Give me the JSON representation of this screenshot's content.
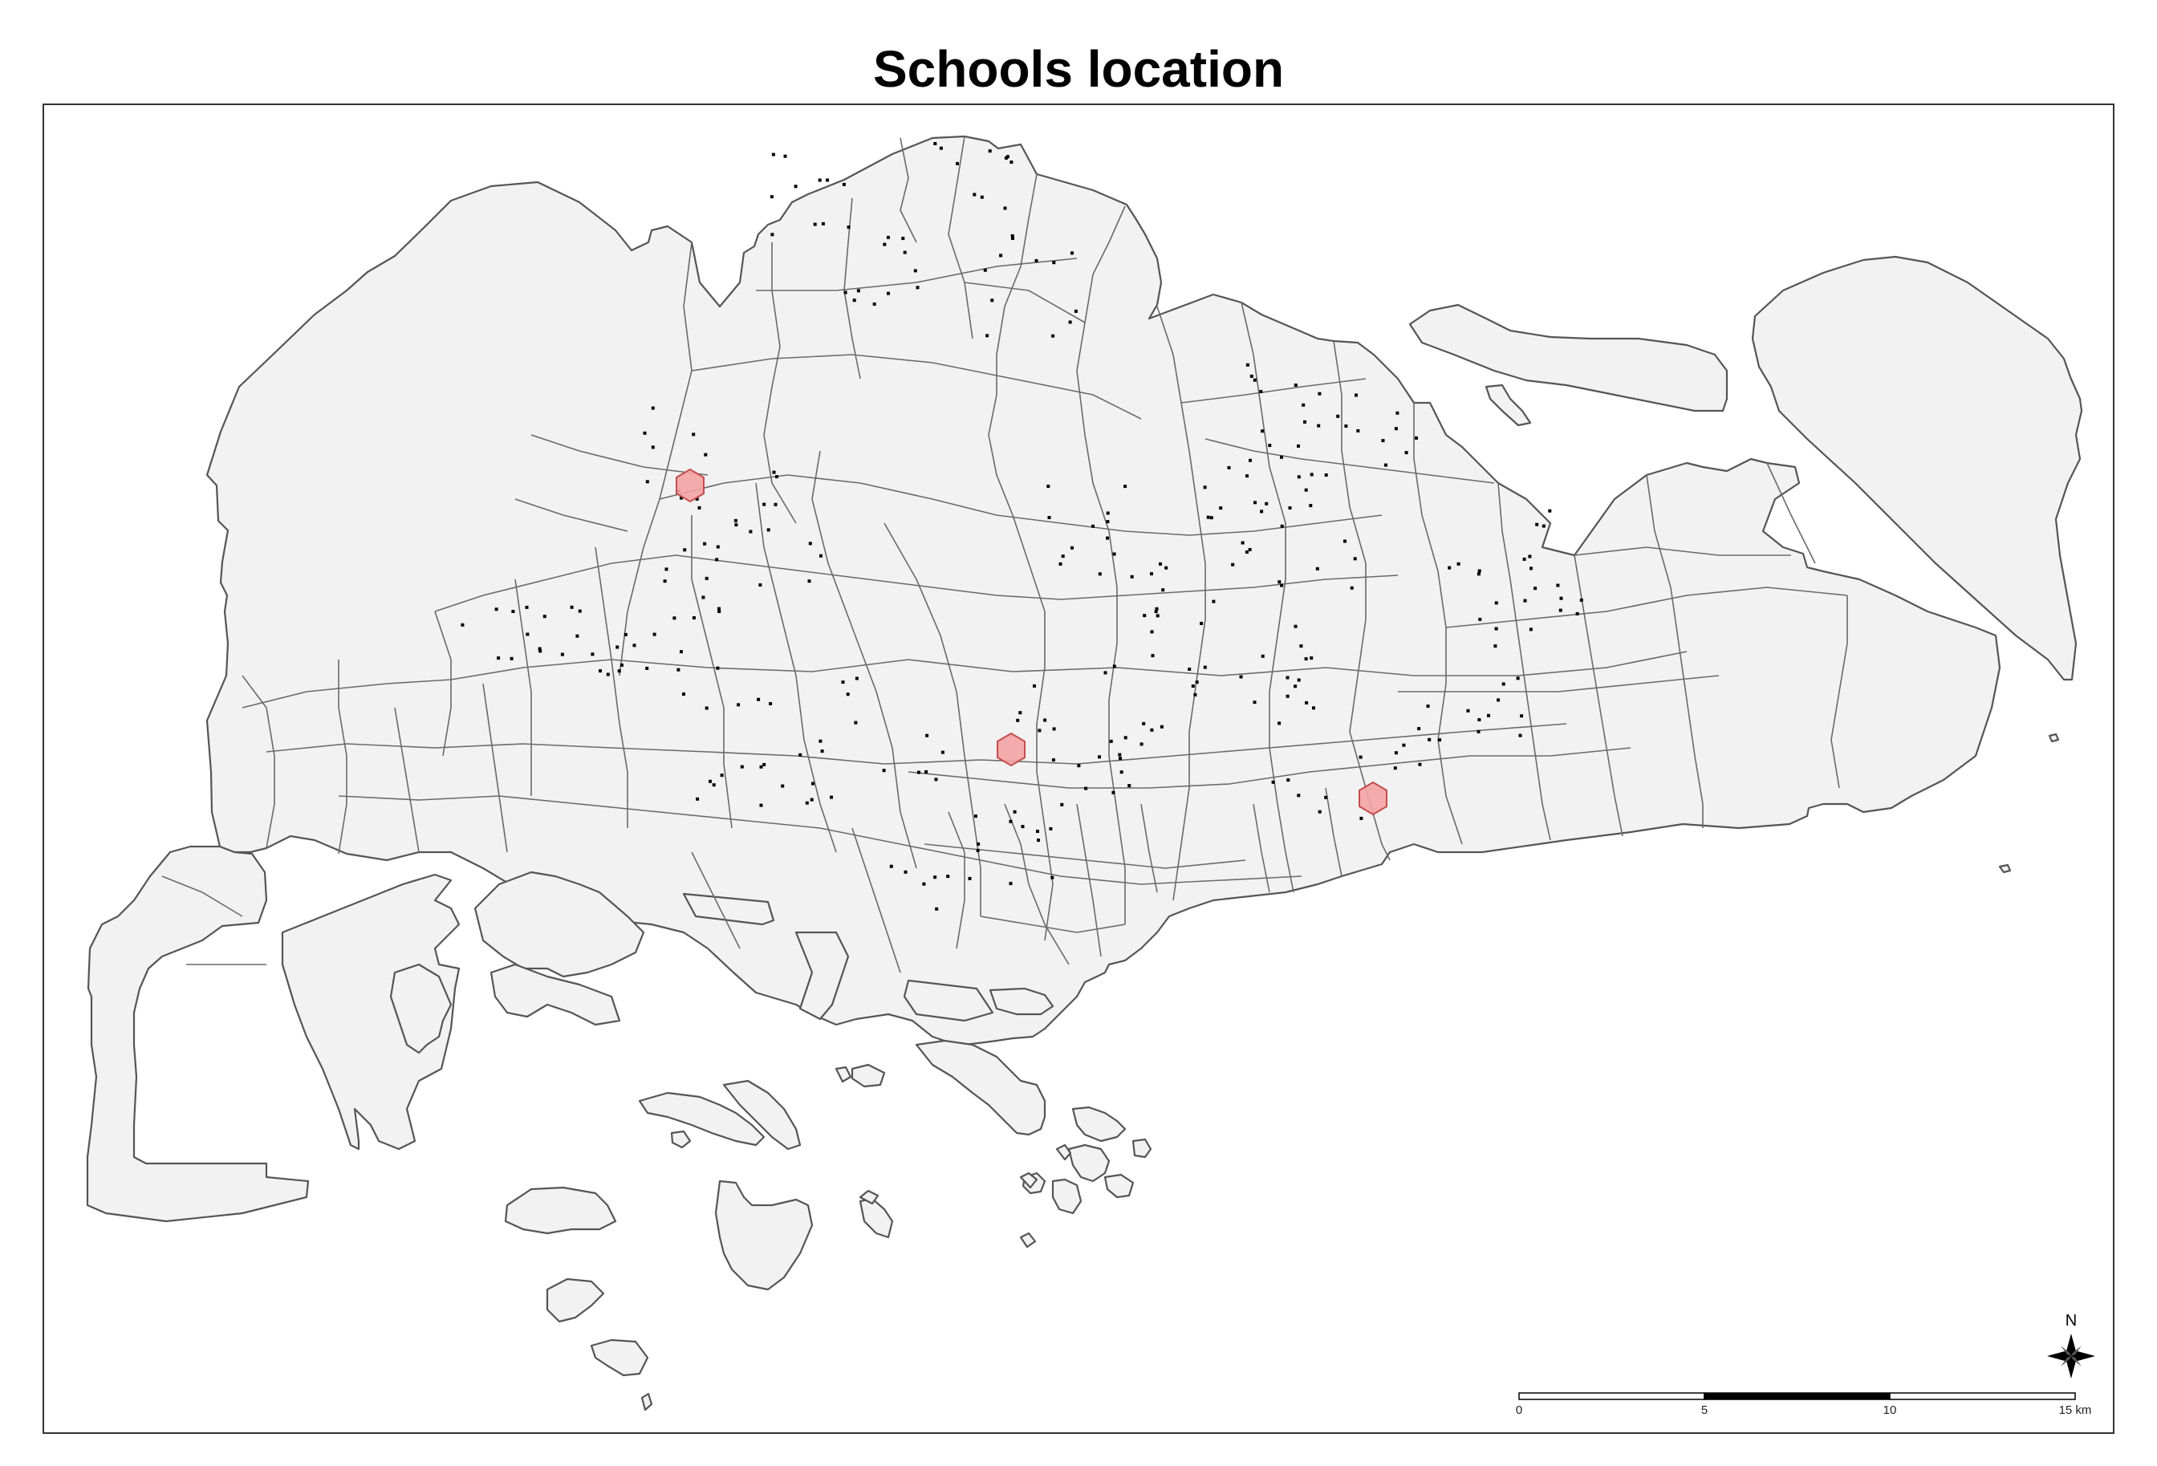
{
  "title": "Schools location",
  "legend": {
    "north_label": "N",
    "scale_labels": [
      "0",
      "5",
      "10",
      "15 km"
    ]
  },
  "colors": {
    "land_fill": "#f2f2f2",
    "boundary": "#6a6a6a",
    "school_point": "#000000",
    "hexagon_fill": "#f4a3a3",
    "hexagon_stroke": "#c44c4c"
  },
  "icons": [
    "north-arrow-icon",
    "scale-bar-icon"
  ]
}
